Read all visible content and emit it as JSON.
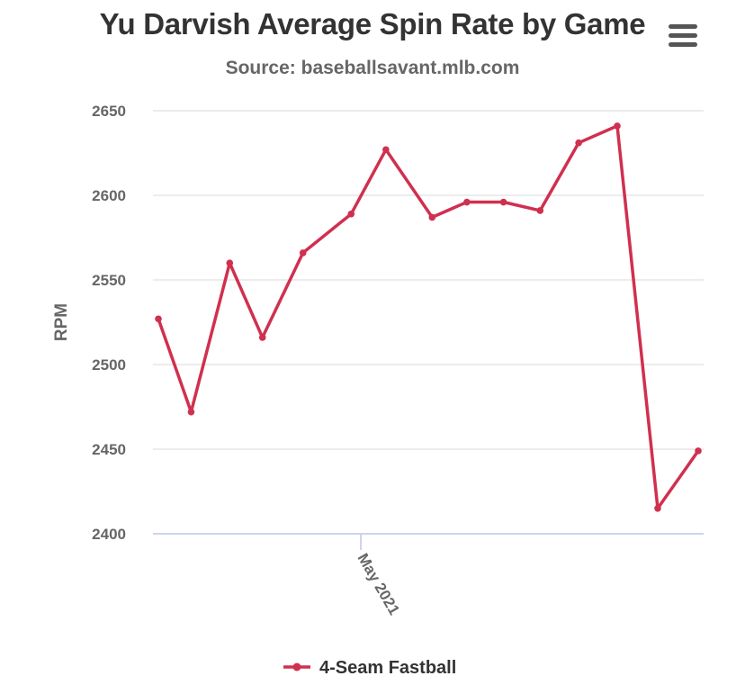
{
  "header": {
    "title": "Yu Darvish Average Spin Rate by Game",
    "subtitle": "Source: baseballsavant.mlb.com",
    "menu_icon": "hamburger-menu-icon"
  },
  "colors": {
    "series": "#d0304f",
    "grid": "#e6e6e6",
    "axis": "#ccd6eb",
    "text_dark": "#333333",
    "text_muted": "#666666"
  },
  "chart_data": {
    "type": "line",
    "title": "Yu Darvish Average Spin Rate by Game",
    "subtitle": "Source: baseballsavant.mlb.com",
    "xlabel": "",
    "ylabel": "RPM",
    "ylim": [
      2400,
      2650
    ],
    "yticks": [
      2400,
      2450,
      2500,
      2550,
      2600,
      2650
    ],
    "xticks": [
      {
        "value": 5.25,
        "label": "May 2021"
      }
    ],
    "x_range": [
      0,
      14.0
    ],
    "grid": true,
    "legend_position": "bottom-center",
    "series": [
      {
        "name": "4-Seam Fastball",
        "x": [
          0,
          0.85,
          1.85,
          2.7,
          3.75,
          5.0,
          5.9,
          7.1,
          8.0,
          8.95,
          9.9,
          10.9,
          11.9,
          12.95,
          14.0
        ],
        "values": [
          2527,
          2472,
          2560,
          2516,
          2566,
          2589,
          2627,
          2587,
          2596,
          2596,
          2591,
          2631,
          2641,
          2415,
          2449
        ]
      }
    ]
  }
}
